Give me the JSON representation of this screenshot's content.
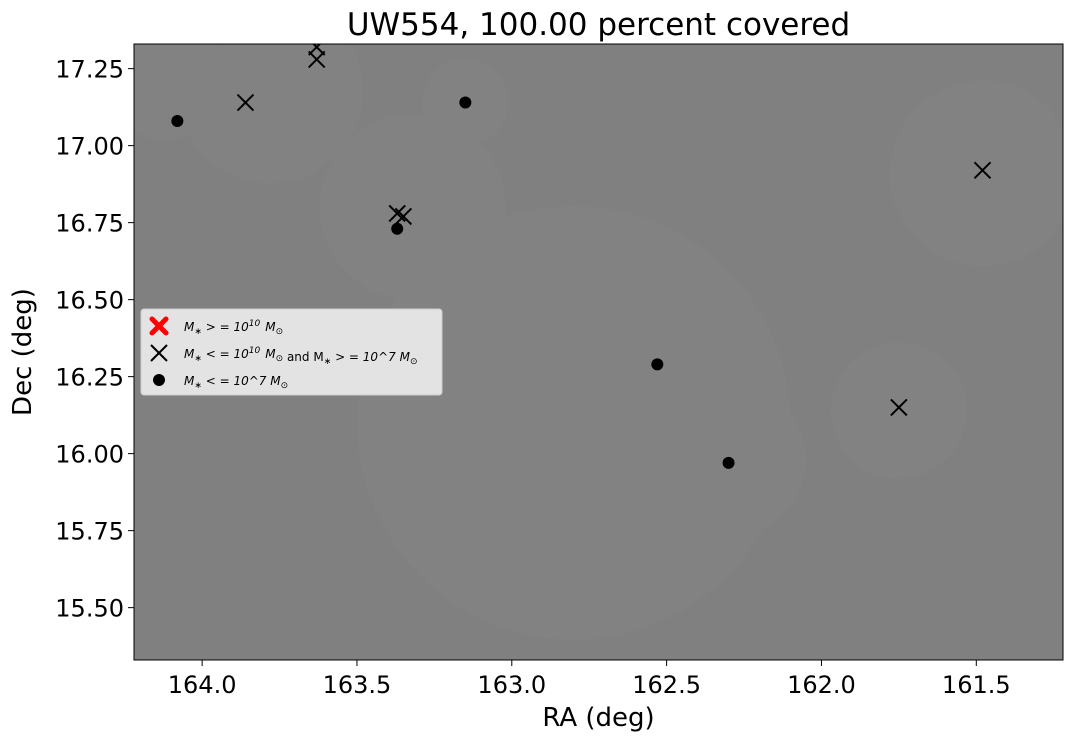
{
  "chart_data": {
    "type": "scatter",
    "title": "UW554, 100.00 percent covered",
    "xlabel": "RA (deg)",
    "ylabel": "Dec (deg)",
    "xlim": [
      164.22,
      161.22
    ],
    "ylim": [
      15.33,
      17.33
    ],
    "x_ticks": [
      164.0,
      163.5,
      163.0,
      162.5,
      162.0,
      161.5
    ],
    "x_tick_labels": [
      "164.0",
      "163.5",
      "163.0",
      "162.5",
      "162.0",
      "161.5"
    ],
    "y_ticks": [
      15.5,
      15.75,
      16.0,
      16.25,
      16.5,
      16.75,
      17.0,
      17.25
    ],
    "y_tick_labels": [
      "15.50",
      "15.75",
      "16.00",
      "16.25",
      "16.50",
      "16.75",
      "17.00",
      "17.25"
    ],
    "grid": false,
    "legend_position": "center-left",
    "background_color": "#808080",
    "coverage_color": "#838383",
    "coverage_circles": [
      {
        "ra": 162.8,
        "dec": 16.1,
        "r_deg": 0.7
      },
      {
        "ra": 163.32,
        "dec": 16.8,
        "r_deg": 0.3
      },
      {
        "ra": 163.78,
        "dec": 17.18,
        "r_deg": 0.3
      },
      {
        "ra": 164.12,
        "dec": 17.22,
        "r_deg": 0.2
      },
      {
        "ra": 163.15,
        "dec": 17.14,
        "r_deg": 0.14
      },
      {
        "ra": 161.48,
        "dec": 16.91,
        "r_deg": 0.3
      },
      {
        "ra": 161.75,
        "dec": 16.14,
        "r_deg": 0.22
      },
      {
        "ra": 162.3,
        "dec": 15.98,
        "r_deg": 0.25
      }
    ],
    "series": [
      {
        "name": "$M_* >= 10^{10} M_\\odot$",
        "marker": "X",
        "color": "#ff0000",
        "points": []
      },
      {
        "name": "$M_* <= 10^{10} M_\\odot$ and $M_* >= 10^7 M_\\odot$",
        "marker": "x",
        "color": "#000000",
        "points": [
          {
            "x": 163.63,
            "y": 17.32
          },
          {
            "x": 163.63,
            "y": 17.28
          },
          {
            "x": 163.86,
            "y": 17.14
          },
          {
            "x": 163.37,
            "y": 16.78
          },
          {
            "x": 163.35,
            "y": 16.77
          },
          {
            "x": 161.48,
            "y": 16.92
          },
          {
            "x": 161.75,
            "y": 16.15
          }
        ]
      },
      {
        "name": "$M_* <= 10^7 M_\\odot$",
        "marker": "o",
        "color": "#000000",
        "points": [
          {
            "x": 164.08,
            "y": 17.08
          },
          {
            "x": 163.15,
            "y": 17.14
          },
          {
            "x": 163.37,
            "y": 16.73
          },
          {
            "x": 162.53,
            "y": 16.29
          },
          {
            "x": 162.3,
            "y": 15.97
          }
        ]
      }
    ]
  }
}
